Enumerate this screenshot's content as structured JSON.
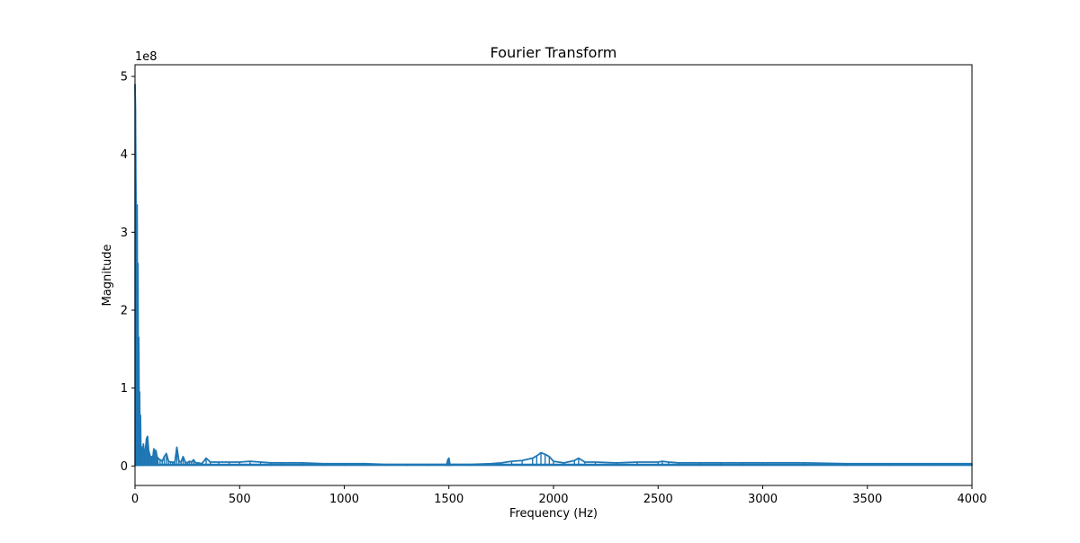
{
  "chart_data": {
    "type": "line",
    "title": "Fourier Transform",
    "xlabel": "Frequency (Hz)",
    "ylabel": "Magnitude",
    "y_offset_label": "1e8",
    "xlim": [
      0,
      4000
    ],
    "ylim": [
      -0.25,
      5.15
    ],
    "y_scale_factor": 100000000,
    "xticks": [
      0,
      500,
      1000,
      1500,
      2000,
      2500,
      3000,
      3500,
      4000
    ],
    "xtick_labels": [
      "0",
      "500",
      "1000",
      "1500",
      "2000",
      "2500",
      "3000",
      "3500",
      "4000"
    ],
    "yticks": [
      0,
      1,
      2,
      3,
      4,
      5
    ],
    "ytick_labels": [
      "0",
      "1",
      "2",
      "3",
      "4",
      "5"
    ],
    "grid": false,
    "series": [
      {
        "color": "#1f77b4",
        "x": [
          0,
          2,
          4,
          6,
          8,
          10,
          12,
          14,
          16,
          18,
          20,
          22,
          24,
          26,
          28,
          30,
          35,
          40,
          45,
          50,
          55,
          60,
          65,
          70,
          75,
          80,
          85,
          90,
          95,
          100,
          105,
          110,
          120,
          130,
          140,
          150,
          160,
          170,
          180,
          190,
          200,
          210,
          220,
          230,
          240,
          250,
          260,
          270,
          280,
          290,
          300,
          320,
          340,
          360,
          400,
          450,
          500,
          550,
          600,
          650,
          700,
          800,
          900,
          1000,
          1100,
          1200,
          1300,
          1400,
          1490,
          1495,
          1500,
          1505,
          1510,
          1600,
          1700,
          1750,
          1800,
          1850,
          1900,
          1920,
          1940,
          1960,
          1980,
          2000,
          2050,
          2100,
          2120,
          2150,
          2200,
          2300,
          2400,
          2500,
          2520,
          2550,
          2600,
          2700,
          2800,
          2900,
          3000,
          3200,
          3400,
          3600,
          3800,
          4000
        ],
        "y": [
          4.9,
          4.6,
          3.65,
          3.0,
          2.4,
          3.35,
          1.5,
          2.6,
          0.7,
          1.65,
          0.5,
          0.95,
          0.3,
          0.65,
          0.2,
          0.25,
          0.12,
          0.28,
          0.1,
          0.22,
          0.35,
          0.38,
          0.2,
          0.15,
          0.1,
          0.12,
          0.1,
          0.22,
          0.18,
          0.2,
          0.12,
          0.1,
          0.08,
          0.06,
          0.12,
          0.16,
          0.06,
          0.05,
          0.05,
          0.04,
          0.24,
          0.06,
          0.05,
          0.12,
          0.05,
          0.04,
          0.06,
          0.05,
          0.08,
          0.04,
          0.04,
          0.03,
          0.1,
          0.05,
          0.05,
          0.05,
          0.05,
          0.06,
          0.05,
          0.04,
          0.04,
          0.04,
          0.03,
          0.03,
          0.03,
          0.02,
          0.02,
          0.02,
          0.02,
          0.08,
          0.1,
          0.02,
          0.02,
          0.02,
          0.03,
          0.04,
          0.06,
          0.07,
          0.1,
          0.13,
          0.17,
          0.15,
          0.12,
          0.06,
          0.04,
          0.07,
          0.1,
          0.05,
          0.05,
          0.04,
          0.05,
          0.05,
          0.06,
          0.05,
          0.04,
          0.04,
          0.04,
          0.04,
          0.04,
          0.04,
          0.03,
          0.03,
          0.03,
          0.03
        ]
      }
    ]
  }
}
